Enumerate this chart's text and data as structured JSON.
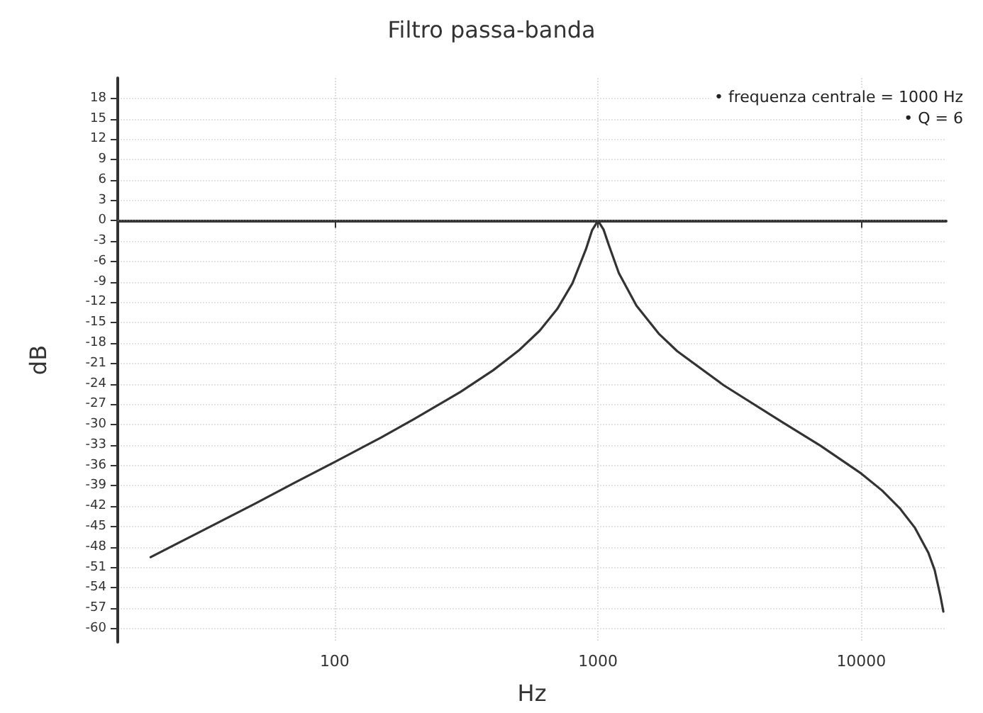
{
  "chart_data": {
    "type": "line",
    "title": "Filtro passa-banda",
    "xlabel": "Hz",
    "ylabel": "dB",
    "annotations": [
      "• frequenza centrale = 1000 Hz",
      "• Q = 6"
    ],
    "x": [
      20,
      30,
      50,
      70,
      100,
      150,
      200,
      300,
      400,
      500,
      600,
      700,
      800,
      900,
      950,
      1000,
      1050,
      1100,
      1200,
      1400,
      1700,
      2000,
      3000,
      5000,
      7000,
      10000,
      12000,
      14000,
      16000,
      18000,
      19000,
      20000,
      20500
    ],
    "series": [
      {
        "color": "#333333",
        "values": [
          -49.5,
          -46,
          -41.6,
          -38.6,
          -35.5,
          -31.9,
          -29.2,
          -25.2,
          -22,
          -19.1,
          -16.2,
          -13,
          -9.2,
          -4.2,
          -1.4,
          0,
          -1.3,
          -3.6,
          -7.7,
          -12.5,
          -16.6,
          -19.2,
          -24.2,
          -29.6,
          -33.1,
          -37.2,
          -39.7,
          -42.3,
          -45.2,
          -48.9,
          -51.4,
          -55.3,
          -57.5
        ]
      }
    ],
    "log": "x",
    "xlim": [
      15,
      21000
    ],
    "xticks": [
      100,
      1000,
      10000
    ],
    "ylim": [
      -62,
      21
    ],
    "yticks": [
      18,
      15,
      12,
      9,
      6,
      3,
      0,
      -3,
      -6,
      -9,
      -12,
      -15,
      -18,
      -21,
      -24,
      -27,
      -30,
      -33,
      -36,
      -39,
      -42,
      -45,
      -48,
      -51,
      -54,
      -57,
      -60
    ],
    "grid": true,
    "marker": "none",
    "line_style": "solid",
    "ref_lines": [
      {
        "axis": "y",
        "value": 0,
        "color": "#555555",
        "line_style": "dotted"
      }
    ]
  }
}
